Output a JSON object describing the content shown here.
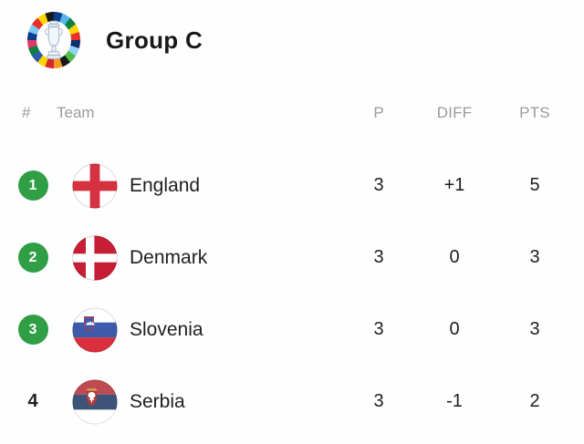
{
  "header": {
    "logo": "euro-2024-trophy-logo",
    "title": "Group C"
  },
  "table": {
    "columns": {
      "rank": "#",
      "team": "Team",
      "played": "P",
      "diff": "DIFF",
      "points": "PTS"
    },
    "rows": [
      {
        "rank": "1",
        "qualified": true,
        "team": "England",
        "flag": "england",
        "played": "3",
        "diff": "+1",
        "points": "5"
      },
      {
        "rank": "2",
        "qualified": true,
        "team": "Denmark",
        "flag": "denmark",
        "played": "3",
        "diff": "0",
        "points": "3"
      },
      {
        "rank": "3",
        "qualified": true,
        "team": "Slovenia",
        "flag": "slovenia",
        "played": "3",
        "diff": "0",
        "points": "3"
      },
      {
        "rank": "4",
        "qualified": false,
        "team": "Serbia",
        "flag": "serbia",
        "played": "3",
        "diff": "-1",
        "points": "2"
      }
    ]
  },
  "colors": {
    "qualified_badge_green": "#2f9e45",
    "header_text_gray": "#9b9b9b",
    "row_text": "#1d1e20",
    "title_text": "#17181a",
    "background": "#fefefe"
  }
}
